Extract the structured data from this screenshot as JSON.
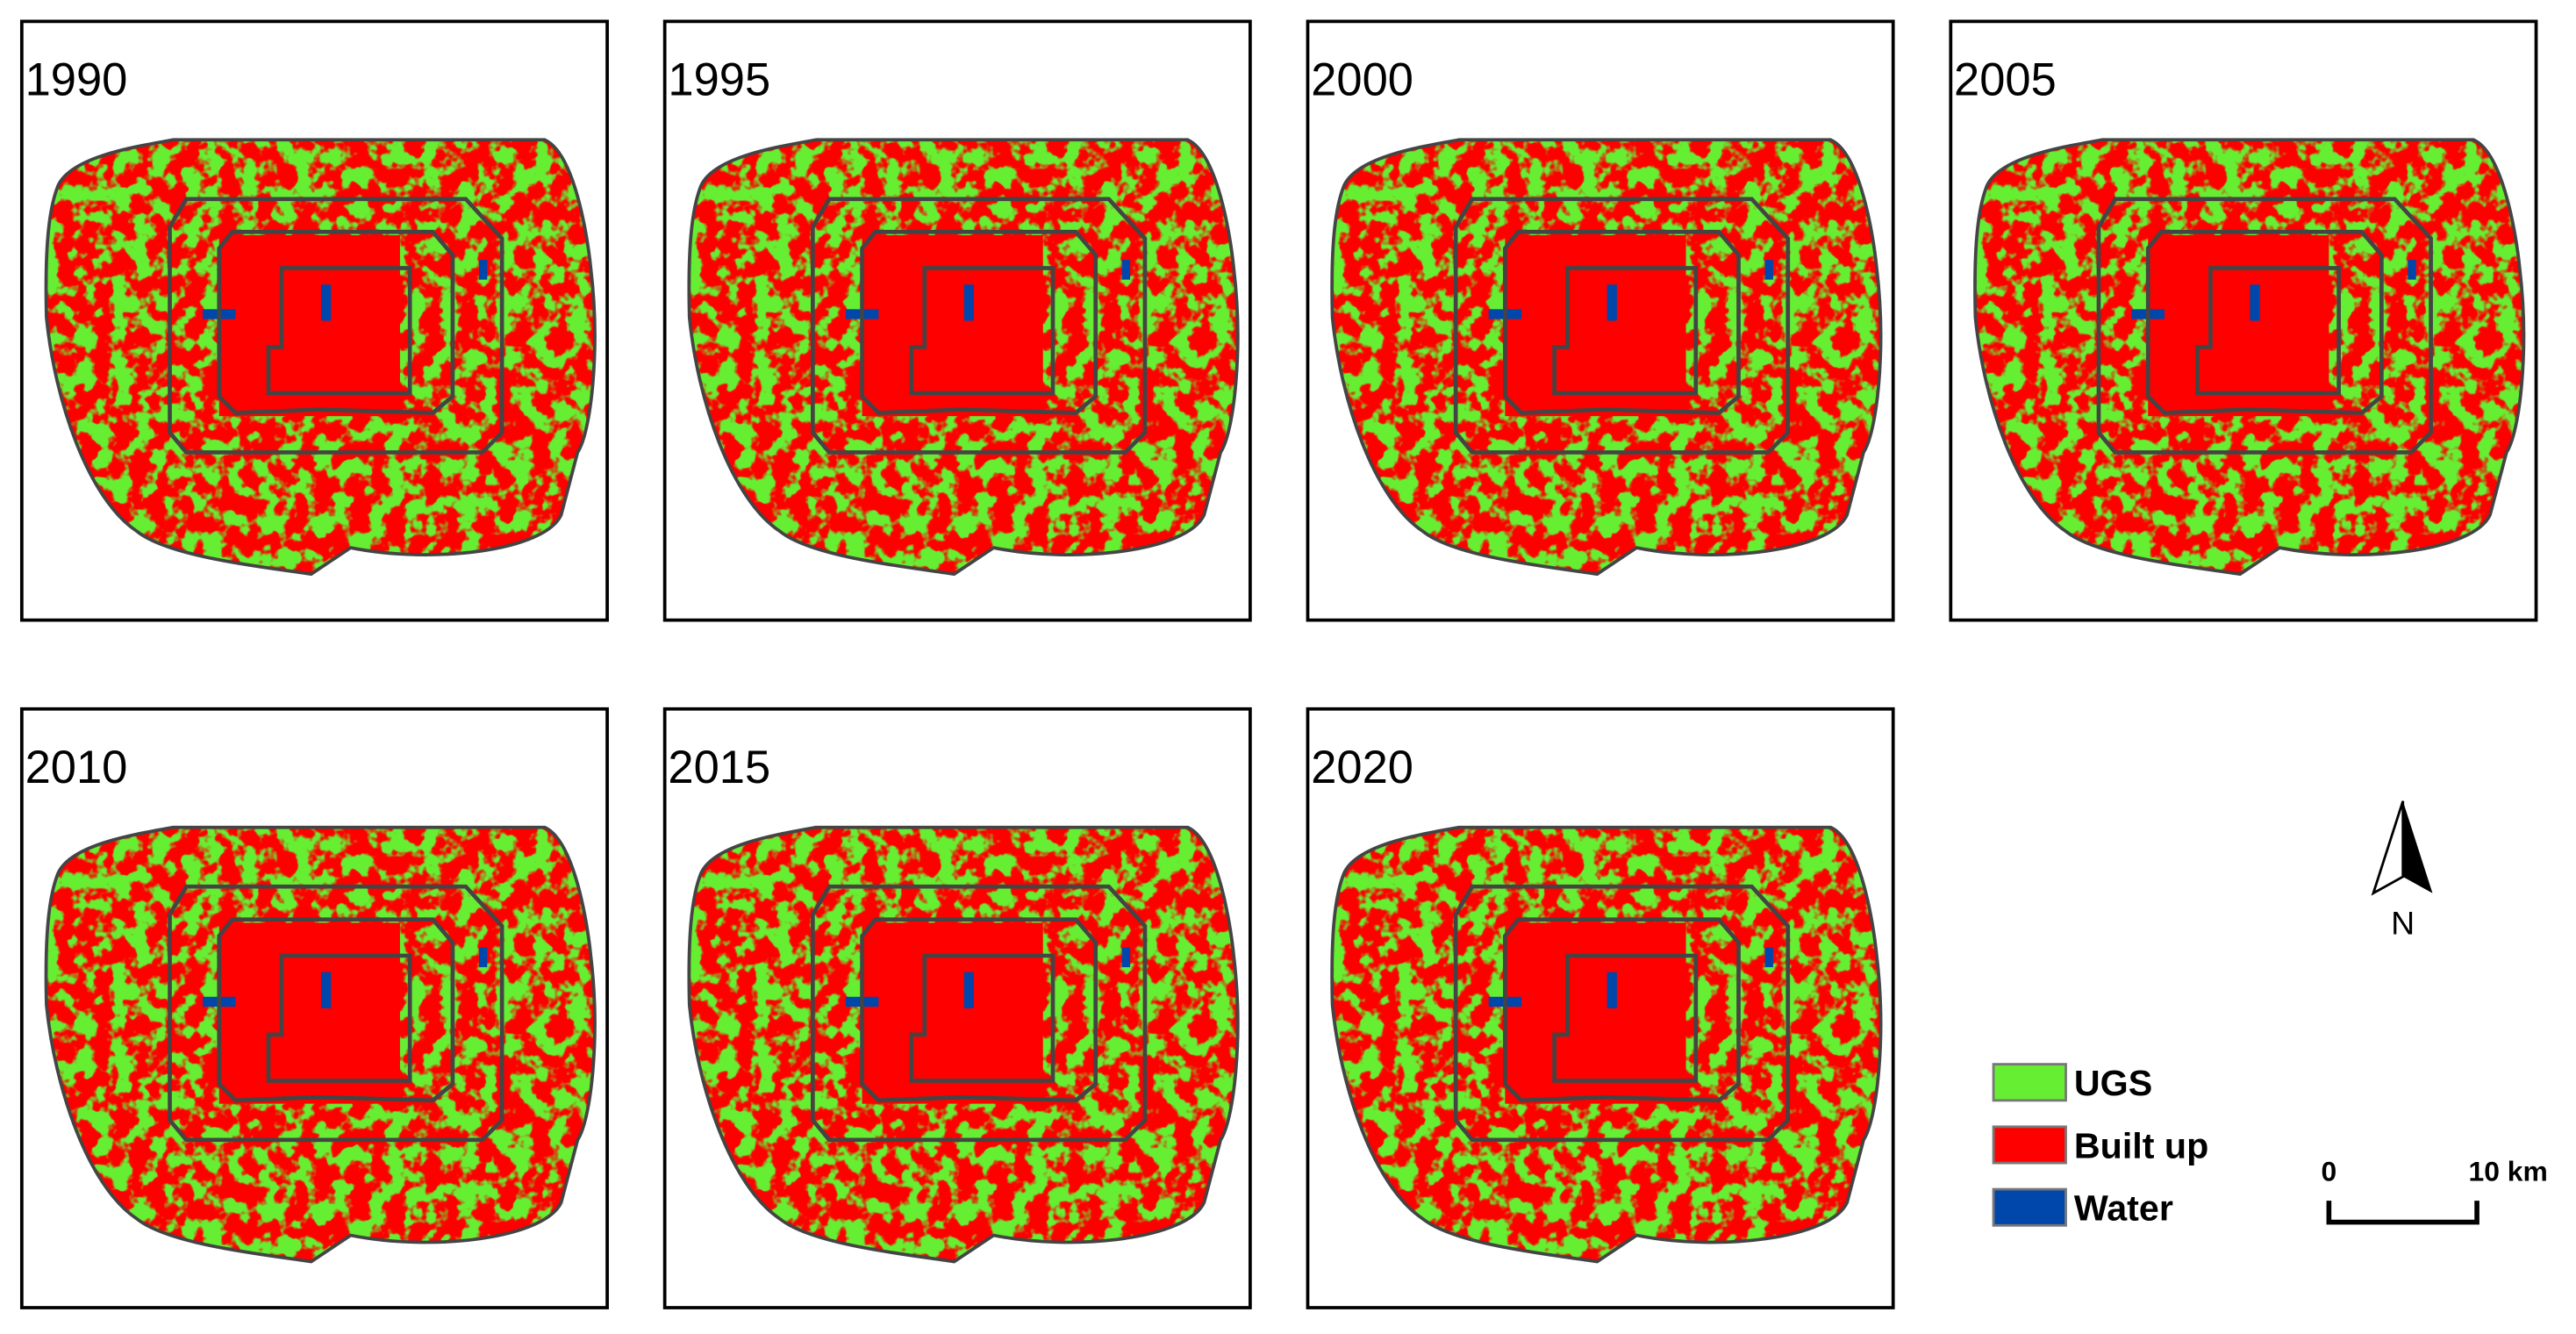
{
  "panels": [
    {
      "year": "1990"
    },
    {
      "year": "1995"
    },
    {
      "year": "2000"
    },
    {
      "year": "2005"
    },
    {
      "year": "2010"
    },
    {
      "year": "2015"
    },
    {
      "year": "2020"
    }
  ],
  "legend": [
    {
      "label": "UGS",
      "color": "#66ee33"
    },
    {
      "label": "Built up",
      "color": "#ff0000"
    },
    {
      "label": "Water",
      "color": "#0047ab"
    }
  ],
  "scale": {
    "start": "0",
    "end": "10 km"
  },
  "north": "N"
}
